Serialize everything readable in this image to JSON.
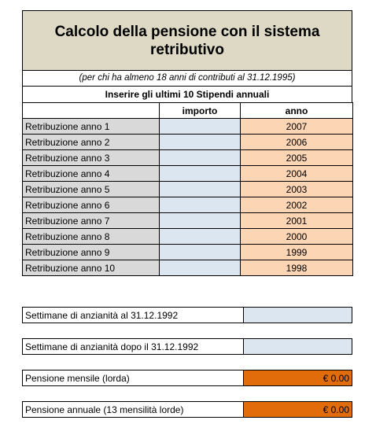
{
  "title": "Calcolo della pensione con il sistema retributivo",
  "subtitle": "(per chi ha almeno 18 anni di contributi al 31.12.1995)",
  "instruction": "Inserire gli ultimi 10 Stipendi annuali",
  "table": {
    "headers": [
      "",
      "importo",
      "anno"
    ],
    "rows": [
      {
        "label": "Retribuzione anno 1",
        "importo": "",
        "anno": "2007"
      },
      {
        "label": "Retribuzione anno 2",
        "importo": "",
        "anno": "2006"
      },
      {
        "label": "Retribuzione anno 3",
        "importo": "",
        "anno": "2005"
      },
      {
        "label": "Retribuzione anno 4",
        "importo": "",
        "anno": "2004"
      },
      {
        "label": "Retribuzione anno 5",
        "importo": "",
        "anno": "2003"
      },
      {
        "label": "Retribuzione anno 6",
        "importo": "",
        "anno": "2002"
      },
      {
        "label": "Retribuzione anno 7",
        "importo": "",
        "anno": "2001"
      },
      {
        "label": "Retribuzione anno 8",
        "importo": "",
        "anno": "2000"
      },
      {
        "label": "Retribuzione anno 9",
        "importo": "",
        "anno": "1999"
      },
      {
        "label": "Retribuzione anno 10",
        "importo": "",
        "anno": "1998"
      }
    ]
  },
  "fields": {
    "weeks_before": {
      "label": "Settimane di anzianità al 31.12.1992",
      "value": ""
    },
    "weeks_after": {
      "label": "Settimane di anzianità dopo il 31.12.1992",
      "value": ""
    },
    "monthly": {
      "label": "Pensione mensile (lorda)",
      "value": "€ 0.00"
    },
    "annual": {
      "label": "Pensione annuale (13 mensilità lorde)",
      "value": "€ 0.00"
    }
  },
  "colors": {
    "title_bg": "#ddd9c4",
    "label_bg": "#d9d9d9",
    "input_bg": "#dce6f1",
    "year_bg": "#fcd5b4",
    "result_bg": "#e26b0a"
  }
}
